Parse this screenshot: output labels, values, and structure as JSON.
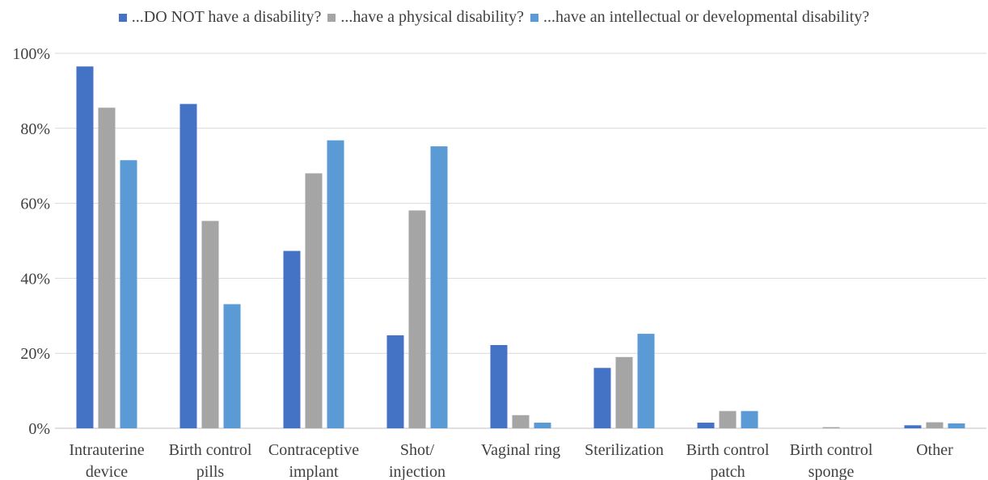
{
  "chart_data": {
    "type": "bar",
    "title": "",
    "xlabel": "",
    "ylabel": "",
    "ylim": [
      0,
      100
    ],
    "yticks": [
      0,
      20,
      40,
      60,
      80,
      100
    ],
    "ytick_labels": [
      "0%",
      "20%",
      "40%",
      "60%",
      "80%",
      "100%"
    ],
    "grid": true,
    "legend_position": "top",
    "categories": [
      [
        "Intrauterine",
        "device"
      ],
      [
        "Birth control",
        "pills"
      ],
      [
        "Contraceptive",
        "implant"
      ],
      [
        "Shot/",
        "injection"
      ],
      [
        "Vaginal ring"
      ],
      [
        "Sterilization"
      ],
      [
        "Birth control",
        "patch"
      ],
      [
        "Birth control",
        "sponge"
      ],
      [
        "Other"
      ]
    ],
    "series": [
      {
        "name": "...DO NOT have a disability?",
        "color": "#4472C4",
        "values": [
          96.5,
          86.5,
          47.3,
          24.8,
          22.2,
          16.1,
          1.5,
          0,
          0.8
        ]
      },
      {
        "name": "...have a physical disability?",
        "color": "#A5A5A5",
        "values": [
          85.5,
          55.3,
          68.0,
          58.1,
          3.5,
          19.0,
          4.6,
          0.3,
          1.6
        ]
      },
      {
        "name": "...have an intellectual or developmental disability?",
        "color": "#5B9BD5",
        "values": [
          71.5,
          33.1,
          76.8,
          75.2,
          1.5,
          25.2,
          4.6,
          0,
          1.3
        ]
      }
    ]
  }
}
